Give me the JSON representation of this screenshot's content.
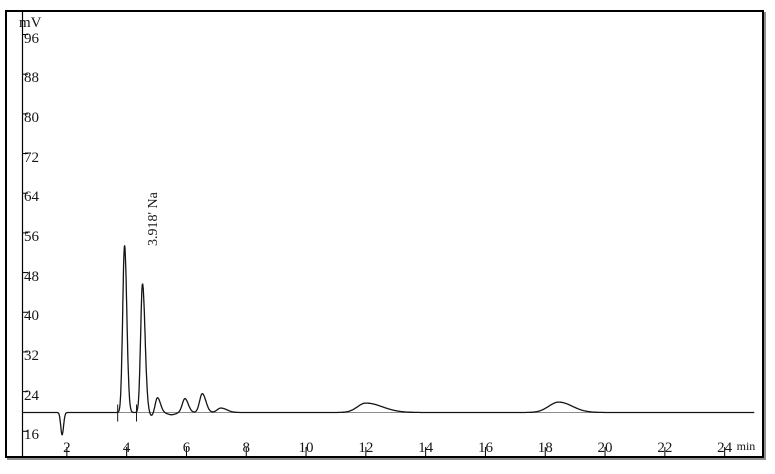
{
  "figure": {
    "colors": {
      "background": "#ffffff",
      "frame": "#000000",
      "frame_shadow": "#8f8f8f",
      "trace": "#141414",
      "integration_baseline": "#8c8c8c",
      "text": "#161616"
    }
  },
  "chart_data": {
    "type": "line",
    "title": "",
    "ylabel": "mV",
    "xlabel": "min",
    "y_ticks": [
      96,
      88,
      80,
      72,
      64,
      56,
      48,
      40,
      32,
      24,
      16
    ],
    "x_ticks": [
      2,
      4,
      6,
      8,
      10,
      12,
      14,
      16,
      18,
      20,
      22,
      24
    ],
    "xlim": [
      0.5,
      25.0
    ],
    "ylim": [
      15,
      98
    ],
    "grid": "off",
    "legend": "none",
    "baseline_mV": 20.8,
    "trace_start_min": 0.5,
    "trace_end_min": 25.0,
    "peaks": [
      {
        "name": "injection-dip",
        "center_min": 1.84,
        "height_mV": -4.5,
        "sigma_left": 0.045,
        "sigma_right": 0.05
      },
      {
        "name": "Na",
        "retention_min": 3.918,
        "center_min": 3.93,
        "height_mV": 33.7,
        "sigma_left": 0.062,
        "sigma_right": 0.075,
        "apex_mV": 54.5
      },
      {
        "name": "peak-2",
        "center_min": 4.53,
        "height_mV": 26.0,
        "sigma_left": 0.062,
        "sigma_right": 0.085,
        "apex_mV": 46.8
      },
      {
        "name": "sag-1",
        "center_min": 4.83,
        "height_mV": -0.7,
        "sigma_left": 0.06,
        "sigma_right": 0.08
      },
      {
        "name": "peak-3",
        "center_min": 5.03,
        "height_mV": 3.0,
        "sigma_left": 0.075,
        "sigma_right": 0.1
      },
      {
        "name": "sag-2",
        "center_min": 5.5,
        "height_mV": -0.45,
        "sigma_left": 0.14,
        "sigma_right": 0.14
      },
      {
        "name": "peak-4",
        "center_min": 5.95,
        "height_mV": 2.8,
        "sigma_left": 0.09,
        "sigma_right": 0.11
      },
      {
        "name": "peak-5",
        "center_min": 6.53,
        "height_mV": 3.8,
        "sigma_left": 0.09,
        "sigma_right": 0.12
      },
      {
        "name": "peak-6",
        "center_min": 7.15,
        "height_mV": 0.9,
        "sigma_left": 0.12,
        "sigma_right": 0.2
      },
      {
        "name": "hump-12min",
        "center_min": 12.0,
        "height_mV": 1.9,
        "sigma_left": 0.28,
        "sigma_right": 0.55
      },
      {
        "name": "hump-18.5min",
        "center_min": 18.45,
        "height_mV": 2.1,
        "sigma_left": 0.33,
        "sigma_right": 0.45
      }
    ],
    "annotations": [
      {
        "text": "3.918' Na",
        "retention_min": 3.918,
        "analyte": "Na"
      }
    ],
    "integration": {
      "baseline_from_min": 3.7,
      "baseline_to_min": 24.95,
      "drop_marks_min": [
        3.7,
        4.33
      ]
    }
  }
}
